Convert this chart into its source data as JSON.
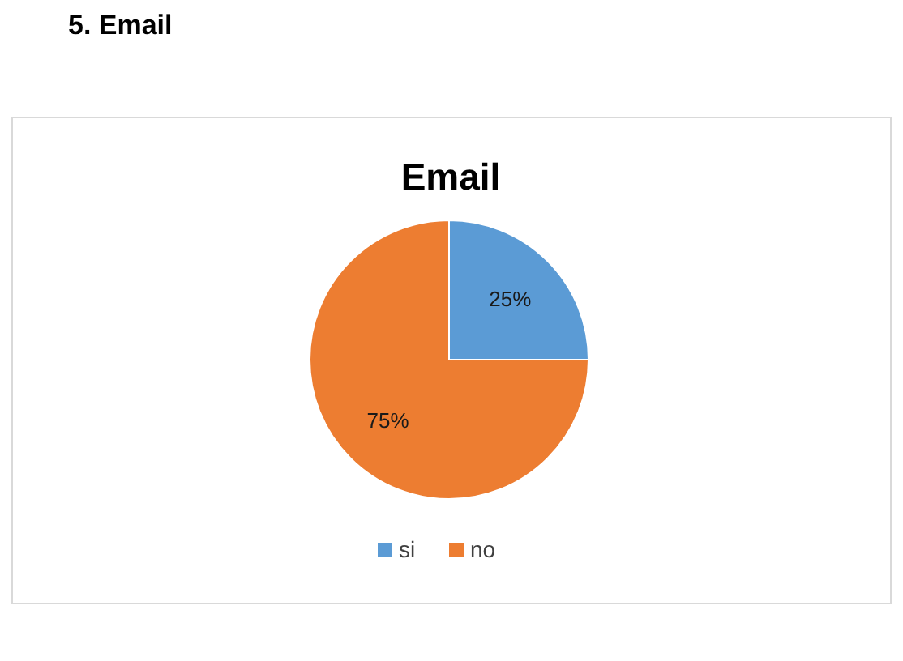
{
  "chart_data": {
    "type": "pie",
    "title": "Email",
    "annotations": [
      "5. Email"
    ],
    "categories": [
      "si",
      "no"
    ],
    "values": [
      25,
      75
    ],
    "colors": [
      "#5b9bd5",
      "#ed7d31"
    ],
    "value_labels": [
      "25%",
      "75%"
    ],
    "legend": "bottom"
  }
}
